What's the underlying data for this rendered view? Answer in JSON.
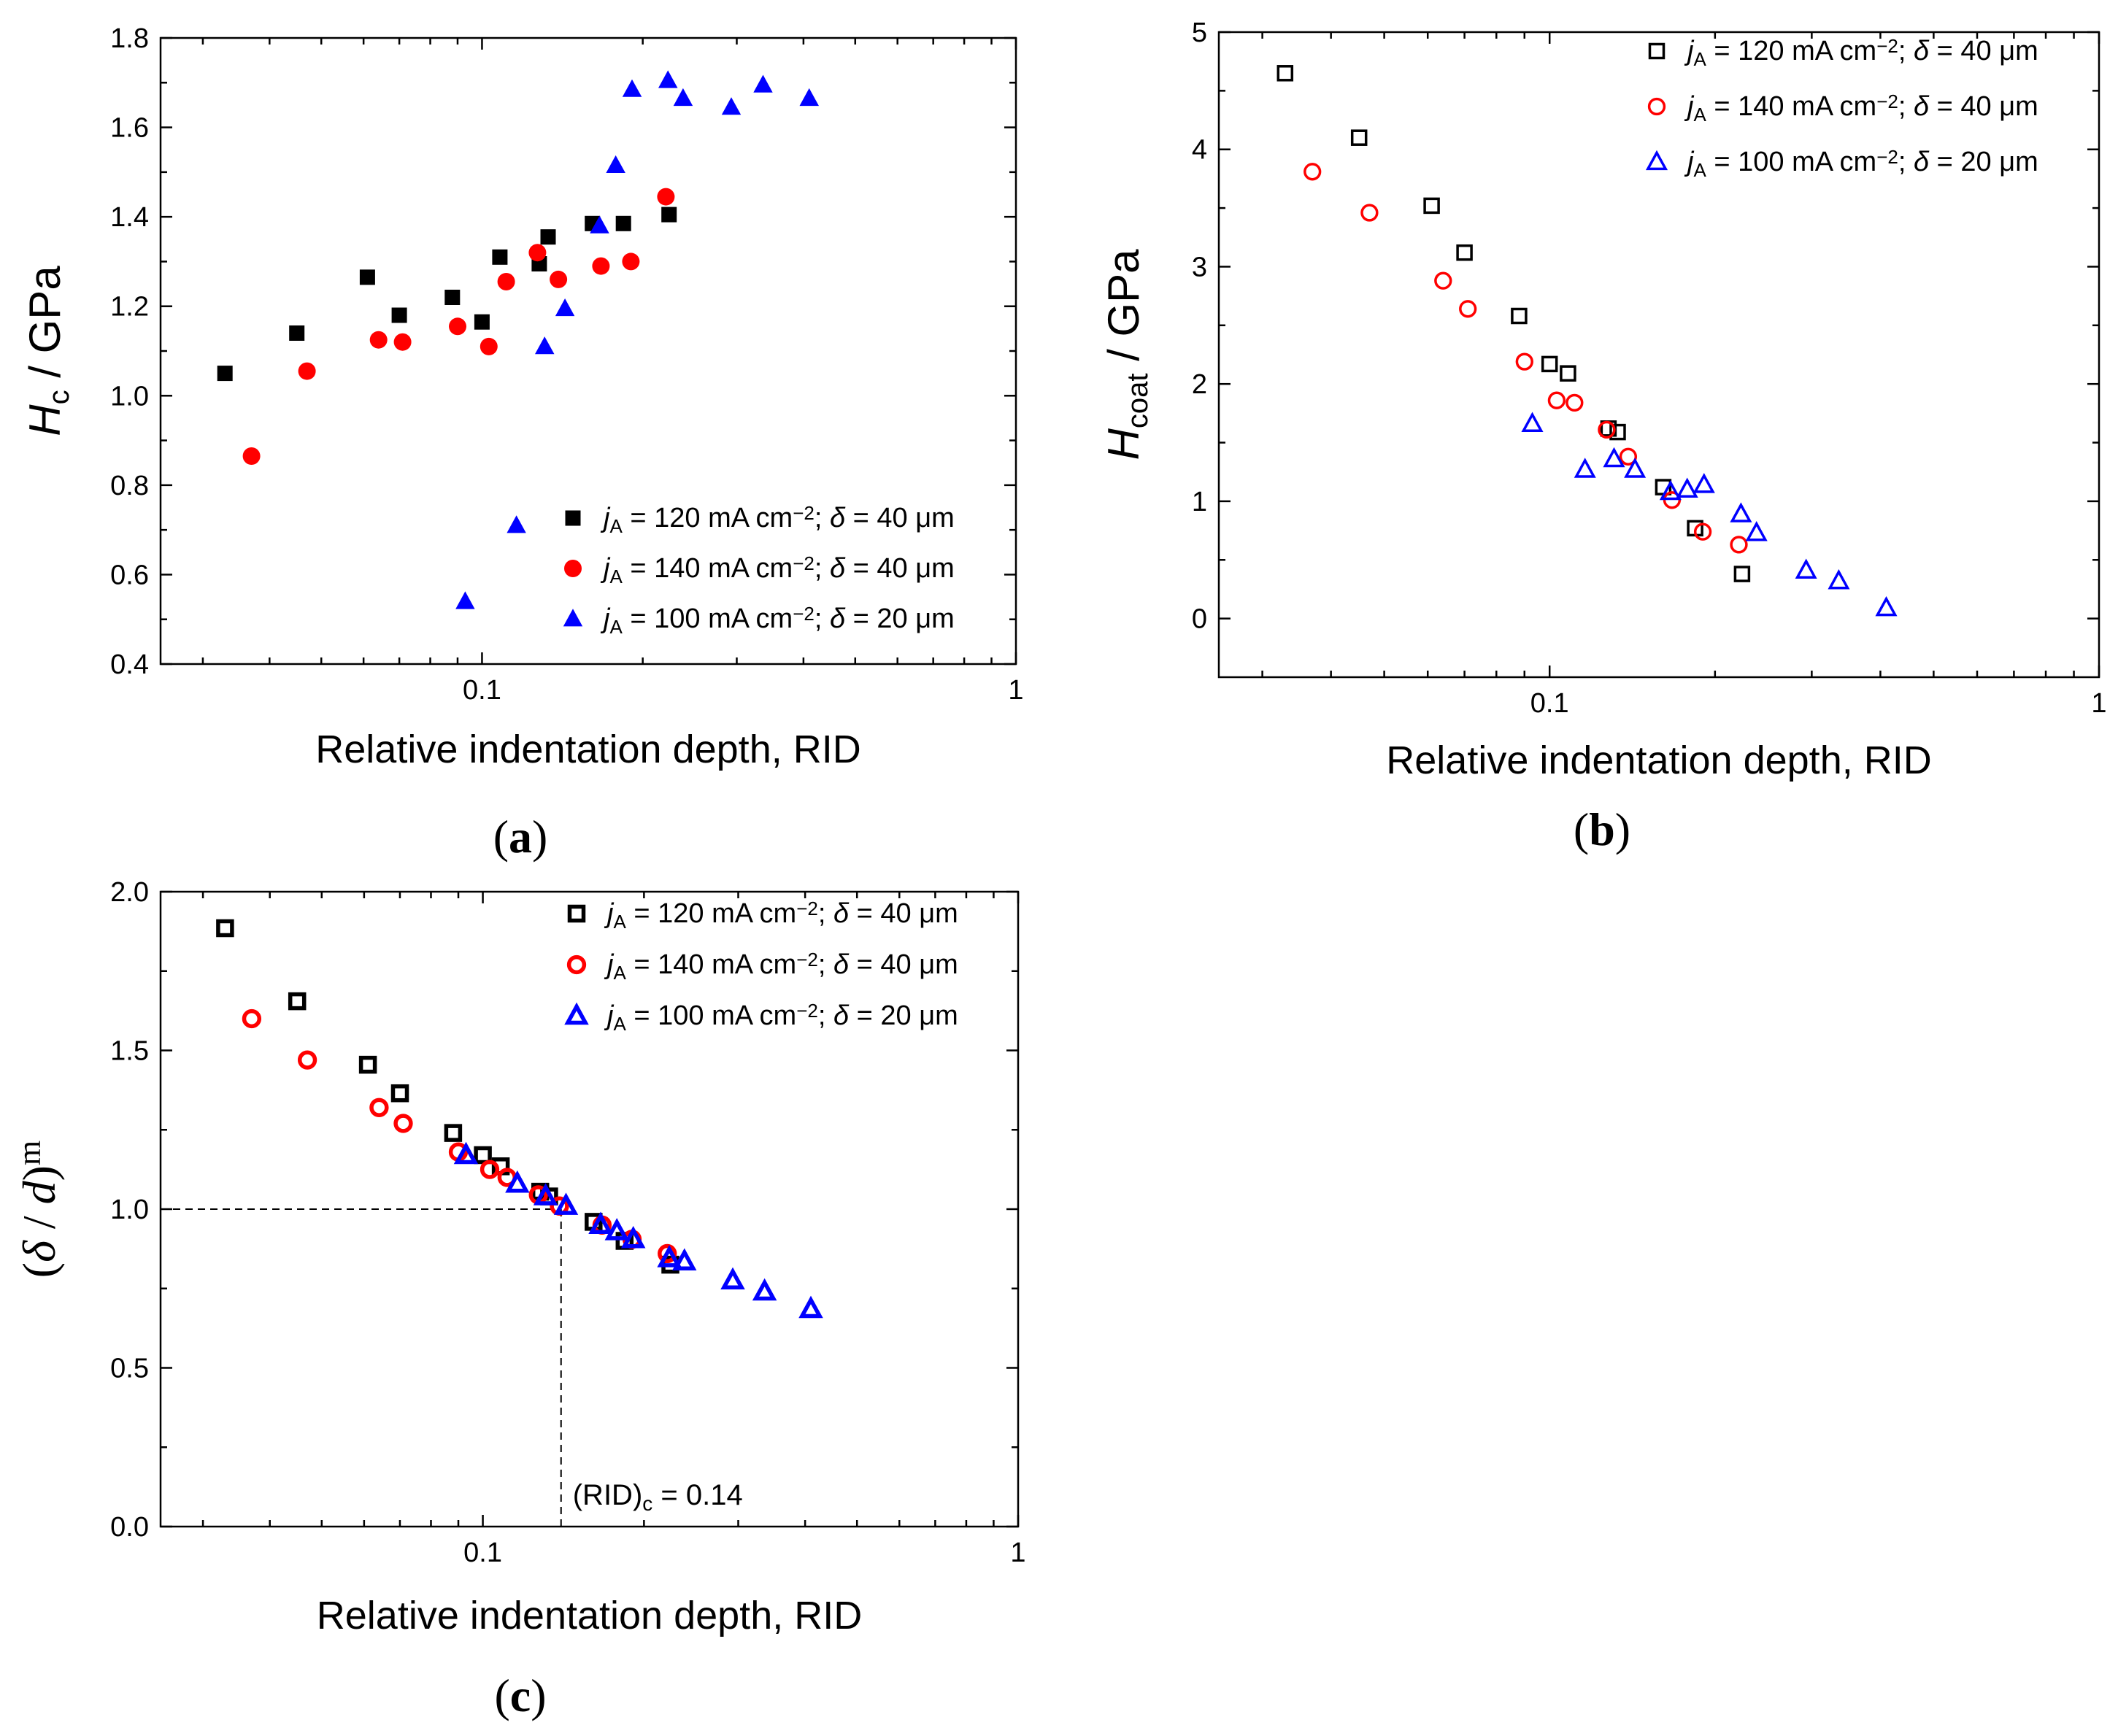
{
  "chart_data": [
    {
      "id": "a",
      "type": "scatter",
      "marker_style": "filled",
      "panel_label": "a",
      "xlabel": "Relative indentation depth, RID",
      "ylabel": {
        "main": "H",
        "sub": "c",
        "rest": " / GPa"
      },
      "xscale": "log",
      "xlim": [
        0.025,
        1
      ],
      "ylim": [
        0.4,
        1.8
      ],
      "xticks": [
        {
          "v": 0.1,
          "label": "0.1"
        },
        {
          "v": 1,
          "label": "1"
        }
      ],
      "yticks": [
        {
          "v": 0.4,
          "label": "0.4"
        },
        {
          "v": 0.6,
          "label": "0.6"
        },
        {
          "v": 0.8,
          "label": "0.8"
        },
        {
          "v": 1.0,
          "label": "1.0"
        },
        {
          "v": 1.2,
          "label": "1.2"
        },
        {
          "v": 1.4,
          "label": "1.4"
        },
        {
          "v": 1.6,
          "label": "1.6"
        },
        {
          "v": 1.8,
          "label": "1.8"
        }
      ],
      "legend_position": "bottom-right",
      "series": [
        {
          "name": "jA = 120 mA cm-2; δ = 40 μm",
          "label": {
            "j": "j",
            "sub": "A",
            "text1": " = 120 mA cm",
            "sup": "−2",
            "text2": "; ",
            "delta": "δ",
            "text3": " = 40 μm"
          },
          "marker": "square",
          "color": "#000000",
          "x": [
            0.033,
            0.045,
            0.061,
            0.07,
            0.088,
            0.1,
            0.108,
            0.128,
            0.133,
            0.161,
            0.184,
            0.224
          ],
          "y": [
            1.05,
            1.14,
            1.265,
            1.18,
            1.22,
            1.165,
            1.31,
            1.295,
            1.355,
            1.385,
            1.385,
            1.405
          ]
        },
        {
          "name": "jA = 140 mA cm-2; δ = 40 μm",
          "label": {
            "j": "j",
            "sub": "A",
            "text1": " = 140 mA cm",
            "sup": "−2",
            "text2": "; ",
            "delta": "δ",
            "text3": " = 40 μm"
          },
          "marker": "circle",
          "color": "#ff0000",
          "x": [
            0.037,
            0.047,
            0.064,
            0.071,
            0.09,
            0.103,
            0.111,
            0.127,
            0.139,
            0.167,
            0.19,
            0.221
          ],
          "y": [
            0.865,
            1.055,
            1.125,
            1.12,
            1.155,
            1.11,
            1.255,
            1.32,
            1.26,
            1.29,
            1.3,
            1.445
          ]
        },
        {
          "name": "jA = 100 mA cm-2; δ = 20 μm",
          "label": {
            "j": "j",
            "sub": "A",
            "text1": " = 100 mA cm",
            "sup": "−2",
            "text2": "; ",
            "delta": "δ",
            "text3": " = 20 μm"
          },
          "marker": "triangle",
          "color": "#0000ff",
          "x": [
            0.093,
            0.116,
            0.131,
            0.143,
            0.166,
            0.178,
            0.191,
            0.223,
            0.238,
            0.293,
            0.336,
            0.41
          ],
          "y": [
            0.54,
            0.71,
            1.11,
            1.195,
            1.38,
            1.515,
            1.685,
            1.705,
            1.665,
            1.645,
            1.695,
            1.665
          ]
        }
      ]
    },
    {
      "id": "b",
      "type": "scatter",
      "marker_style": "open",
      "panel_label": "b",
      "xlabel": "Relative indentation depth, RID",
      "ylabel": {
        "main": "H",
        "sub": "coat",
        "rest": " / GPa"
      },
      "xscale": "log",
      "xlim": [
        0.025,
        1
      ],
      "ylim": [
        -0.5,
        5
      ],
      "xticks": [
        {
          "v": 0.1,
          "label": "0.1"
        },
        {
          "v": 1,
          "label": "1"
        }
      ],
      "yticks": [
        {
          "v": 0,
          "label": "0"
        },
        {
          "v": 1,
          "label": "1"
        },
        {
          "v": 2,
          "label": "2"
        },
        {
          "v": 3,
          "label": "3"
        },
        {
          "v": 4,
          "label": "4"
        },
        {
          "v": 5,
          "label": "5"
        }
      ],
      "legend_position": "top-right",
      "series": [
        {
          "name": "jA = 120 mA cm-2; δ = 40 μm",
          "label": {
            "j": "j",
            "sub": "A",
            "text1": " = 120 mA cm",
            "sup": "−2",
            "text2": "; ",
            "delta": "δ",
            "text3": " = 40 μm"
          },
          "marker": "square",
          "color": "#000000",
          "x": [
            0.033,
            0.045,
            0.061,
            0.07,
            0.088,
            0.1,
            0.108,
            0.128,
            0.133,
            0.161,
            0.184,
            0.224
          ],
          "y": [
            4.65,
            4.1,
            3.52,
            3.12,
            2.58,
            2.17,
            2.09,
            1.62,
            1.59,
            1.12,
            0.77,
            0.38
          ]
        },
        {
          "name": "jA = 140 mA cm-2; δ = 40 μm",
          "label": {
            "j": "j",
            "sub": "A",
            "text1": " = 140 mA cm",
            "sup": "−2",
            "text2": "; ",
            "delta": "δ",
            "text3": " = 40 μm"
          },
          "marker": "circle",
          "color": "#ff0000",
          "x": [
            0.037,
            0.047,
            0.064,
            0.071,
            0.09,
            0.103,
            0.111,
            0.127,
            0.139,
            0.167,
            0.19,
            0.221
          ],
          "y": [
            3.81,
            3.46,
            2.88,
            2.64,
            2.19,
            1.86,
            1.84,
            1.61,
            1.38,
            1.01,
            0.74,
            0.63
          ]
        },
        {
          "name": "jA = 100 mA cm-2; δ = 20 μm",
          "label": {
            "j": "j",
            "sub": "A",
            "text1": " = 100 mA cm",
            "sup": "−2",
            "text2": "; ",
            "delta": "δ",
            "text3": " = 20 μm"
          },
          "marker": "triangle",
          "color": "#0000ff",
          "x": [
            0.093,
            0.116,
            0.131,
            0.143,
            0.166,
            0.178,
            0.191,
            0.223,
            0.238,
            0.293,
            0.336,
            0.41
          ],
          "y": [
            1.66,
            1.27,
            1.36,
            1.27,
            1.08,
            1.1,
            1.14,
            0.89,
            0.73,
            0.41,
            0.32,
            0.09
          ]
        }
      ]
    },
    {
      "id": "c",
      "type": "scatter",
      "marker_style": "open-thick",
      "panel_label": "c",
      "xlabel": "Relative indentation depth, RID",
      "ylabel": {
        "open": "(",
        "delta": "δ",
        "mid": " / ",
        "d": "d",
        "close": ")",
        "sup": "m"
      },
      "xscale": "log",
      "xlim": [
        0.025,
        1
      ],
      "ylim": [
        0.0,
        2.0
      ],
      "xticks": [
        {
          "v": 0.1,
          "label": "0.1"
        },
        {
          "v": 1,
          "label": "1"
        }
      ],
      "yticks": [
        {
          "v": 0.0,
          "label": "0.0"
        },
        {
          "v": 0.5,
          "label": "0.5"
        },
        {
          "v": 1.0,
          "label": "1.0"
        },
        {
          "v": 1.5,
          "label": "1.5"
        },
        {
          "v": 2.0,
          "label": "2.0"
        }
      ],
      "legend_position": "top-right",
      "reference_lines": {
        "x": 0.14,
        "y": 1.0
      },
      "annotation": {
        "main": "(RID)",
        "sub": "c",
        "rest": " = 0.14"
      },
      "series": [
        {
          "name": "jA = 120 mA cm-2; δ = 40 μm",
          "label": {
            "j": "j",
            "sub": "A",
            "text1": " = 120 mA cm",
            "sup": "−2",
            "text2": "; ",
            "delta": "δ",
            "text3": " = 40 μm"
          },
          "marker": "square",
          "color": "#000000",
          "x": [
            0.033,
            0.045,
            0.061,
            0.07,
            0.088,
            0.1,
            0.108,
            0.128,
            0.133,
            0.161,
            0.184,
            0.224
          ],
          "y": [
            1.885,
            1.655,
            1.455,
            1.365,
            1.24,
            1.17,
            1.135,
            1.055,
            1.04,
            0.96,
            0.9,
            0.825
          ]
        },
        {
          "name": "jA = 140 mA cm-2; δ = 40 μm",
          "label": {
            "j": "j",
            "sub": "A",
            "text1": " = 140 mA cm",
            "sup": "−2",
            "text2": "; ",
            "delta": "δ",
            "text3": " = 40 μm"
          },
          "marker": "circle",
          "color": "#ff0000",
          "x": [
            0.037,
            0.047,
            0.064,
            0.071,
            0.09,
            0.103,
            0.111,
            0.127,
            0.139,
            0.167,
            0.19,
            0.221
          ],
          "y": [
            1.6,
            1.47,
            1.32,
            1.27,
            1.18,
            1.125,
            1.1,
            1.045,
            1.01,
            0.95,
            0.905,
            0.86
          ]
        },
        {
          "name": "jA = 100 mA cm-2; δ = 20 μm",
          "label": {
            "j": "j",
            "sub": "A",
            "text1": " = 100 mA cm",
            "sup": "−2",
            "text2": "; ",
            "delta": "δ",
            "text3": " = 20 μm"
          },
          "marker": "triangle",
          "color": "#0000ff",
          "x": [
            0.093,
            0.116,
            0.131,
            0.143,
            0.166,
            0.178,
            0.191,
            0.223,
            0.238,
            0.293,
            0.336,
            0.41
          ],
          "y": [
            1.17,
            1.08,
            1.04,
            1.01,
            0.95,
            0.93,
            0.905,
            0.845,
            0.835,
            0.775,
            0.74,
            0.685
          ]
        }
      ]
    }
  ]
}
